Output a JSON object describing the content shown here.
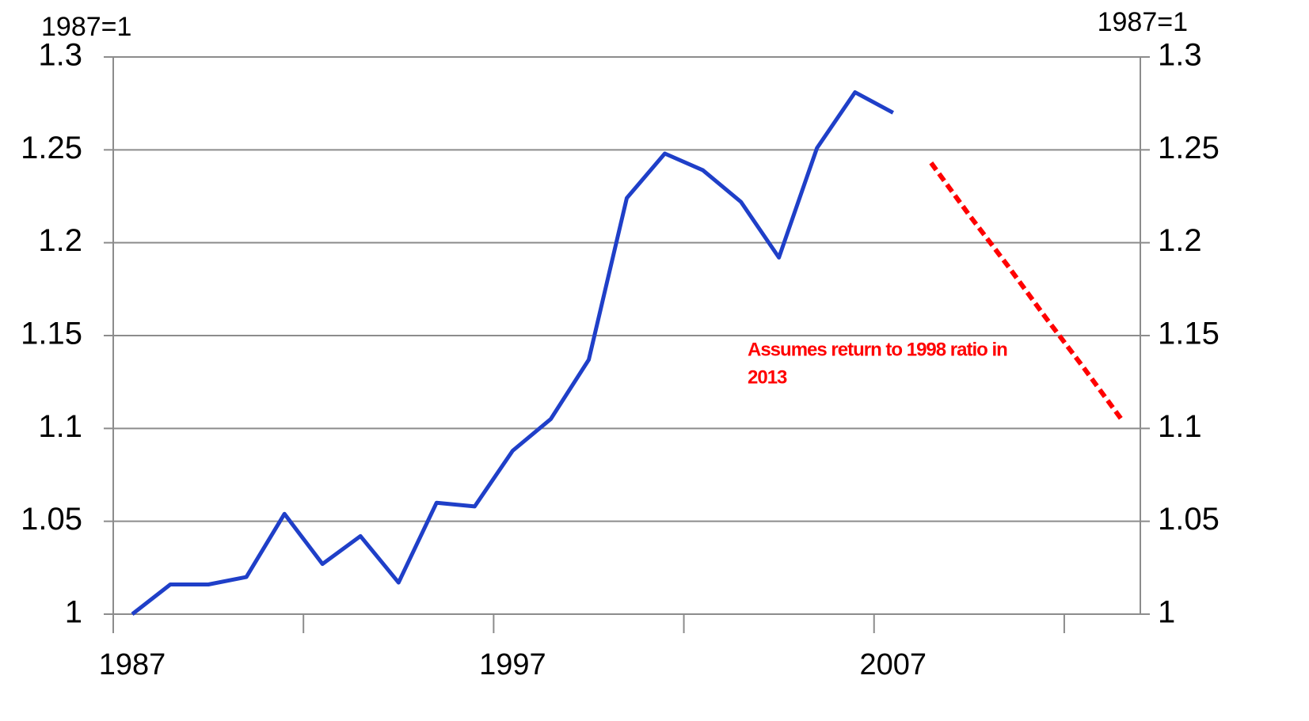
{
  "chart_data": {
    "type": "line",
    "y_unit_label": "1987=1",
    "y2_unit_label": "1987=1",
    "annotation": [
      "Assumes  return to 1998 ratio in",
      "2013"
    ],
    "categories": [
      "1987",
      null,
      null,
      null,
      null,
      null,
      null,
      null,
      null,
      null,
      "1997",
      null,
      null,
      null,
      null,
      null,
      null,
      null,
      null,
      null,
      "2007",
      null,
      null,
      null,
      null,
      null,
      null
    ],
    "series": [
      {
        "color": "#1f3fc8",
        "dashed": false,
        "values": [
          1.0,
          1.016,
          1.016,
          1.02,
          1.054,
          1.027,
          1.042,
          1.017,
          1.06,
          1.058,
          1.088,
          1.105,
          1.137,
          1.224,
          1.248,
          1.239,
          1.222,
          1.192,
          1.251,
          1.281,
          1.27,
          null,
          null,
          null,
          null,
          null,
          null
        ]
      },
      {
        "color": "#ff0000",
        "dashed": true,
        "values": [
          null,
          null,
          null,
          null,
          null,
          null,
          null,
          null,
          null,
          null,
          null,
          null,
          null,
          null,
          null,
          null,
          null,
          null,
          null,
          null,
          null,
          1.243,
          1.215,
          1.188,
          1.16,
          1.133,
          1.105
        ]
      }
    ],
    "ylim": [
      1,
      1.3
    ],
    "yticks": [
      1,
      1.05,
      1.1,
      1.15,
      1.2,
      1.25,
      1.3
    ],
    "y2lim": [
      1,
      1.3
    ],
    "y2ticks": [
      1,
      1.05,
      1.1,
      1.15,
      1.2,
      1.25,
      1.3
    ],
    "grid": true
  }
}
